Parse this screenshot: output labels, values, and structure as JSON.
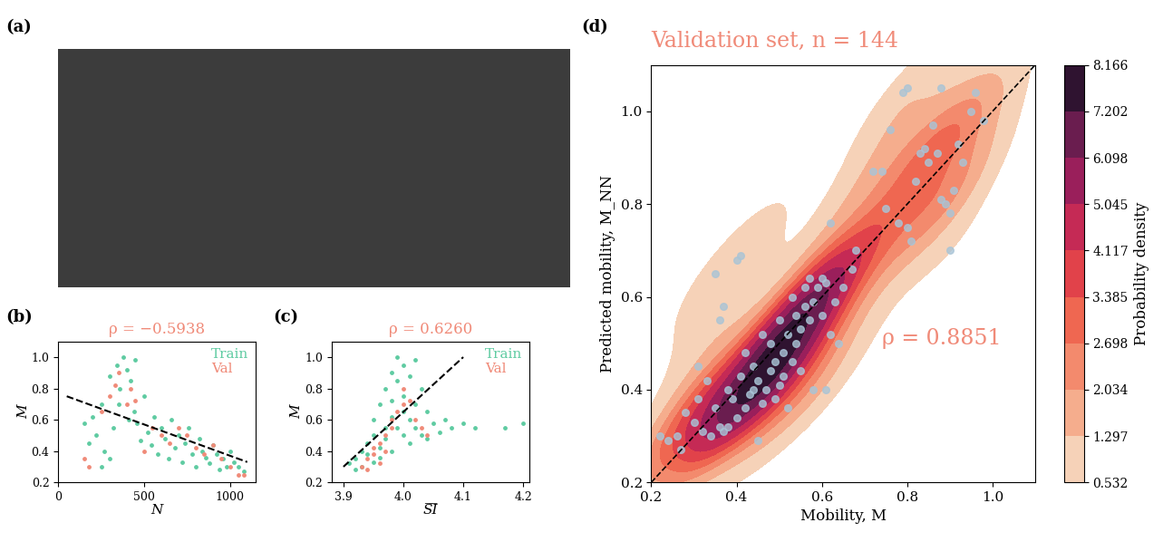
{
  "chart_data": [
    {
      "type": "image",
      "panel": "(a)"
    },
    {
      "type": "scatter",
      "panel": "(b)",
      "title": "ρ = −0.5938",
      "x_label": "N",
      "y_label": "M",
      "xlim": [
        0,
        1150
      ],
      "xticks": [
        0,
        500,
        1000
      ],
      "ylim": [
        0.2,
        1.1
      ],
      "yticks": [
        0.2,
        0.4,
        0.6,
        0.8,
        1.0
      ],
      "legend": "upper right",
      "series": [
        {
          "name": "Train",
          "color": "#5ecba1",
          "marker": "o",
          "x": [
            150,
            180,
            200,
            220,
            250,
            270,
            300,
            320,
            340,
            360,
            380,
            400,
            420,
            440,
            460,
            480,
            500,
            520,
            540,
            560,
            580,
            600,
            620,
            640,
            660,
            680,
            700,
            720,
            740,
            760,
            780,
            800,
            820,
            840,
            860,
            880,
            900,
            920,
            940,
            960,
            980,
            1000,
            1020,
            1050,
            1080,
            350,
            410,
            300,
            250,
            450
          ],
          "values": [
            0.58,
            0.45,
            0.62,
            0.5,
            0.7,
            0.4,
            0.88,
            0.55,
            0.95,
            0.8,
            1.0,
            0.92,
            0.85,
            0.65,
            0.58,
            0.47,
            0.75,
            0.52,
            0.44,
            0.62,
            0.38,
            0.55,
            0.48,
            0.35,
            0.6,
            0.42,
            0.5,
            0.33,
            0.45,
            0.55,
            0.38,
            0.3,
            0.48,
            0.4,
            0.36,
            0.32,
            0.44,
            0.38,
            0.28,
            0.35,
            0.3,
            0.4,
            0.33,
            0.3,
            0.27,
            0.7,
            0.6,
            0.35,
            0.3,
            0.98
          ]
        },
        {
          "name": "Val",
          "color": "#f08a78",
          "marker": "o",
          "x": [
            150,
            180,
            250,
            300,
            330,
            350,
            400,
            420,
            450,
            500,
            550,
            600,
            650,
            700,
            750,
            800,
            850,
            900,
            950,
            1000,
            1050,
            1080
          ],
          "values": [
            0.35,
            0.3,
            0.65,
            0.75,
            0.82,
            0.9,
            0.7,
            0.8,
            0.72,
            0.4,
            0.55,
            0.5,
            0.45,
            0.55,
            0.5,
            0.42,
            0.38,
            0.44,
            0.35,
            0.3,
            0.25,
            0.25
          ]
        },
        {
          "type": "line",
          "line_style": "dashed",
          "color": "#000000",
          "x": [
            50,
            1100
          ],
          "values": [
            0.75,
            0.33
          ]
        }
      ]
    },
    {
      "type": "scatter",
      "panel": "(c)",
      "title": "ρ = 0.6260",
      "x_label": "S̅I̅",
      "y_label": "M",
      "xlim": [
        3.88,
        4.21
      ],
      "xticks": [
        3.9,
        4.0,
        4.1,
        4.2
      ],
      "ylim": [
        0.2,
        1.1
      ],
      "yticks": [
        0.2,
        0.4,
        0.6,
        0.8,
        1.0
      ],
      "legend": "upper right",
      "series": [
        {
          "name": "Train",
          "color": "#5ecba1",
          "marker": "o",
          "x": [
            3.92,
            3.93,
            3.93,
            3.94,
            3.94,
            3.95,
            3.95,
            3.95,
            3.96,
            3.96,
            3.97,
            3.97,
            3.97,
            3.98,
            3.98,
            3.98,
            3.99,
            3.99,
            3.99,
            4.0,
            4.0,
            4.0,
            4.0,
            4.01,
            4.01,
            4.01,
            4.02,
            4.02,
            4.03,
            4.03,
            4.04,
            4.04,
            4.05,
            4.06,
            4.07,
            4.08,
            4.1,
            4.12,
            4.17,
            4.2,
            3.91,
            3.92,
            3.96,
            3.98,
            4.02
          ],
          "values": [
            0.35,
            0.4,
            0.3,
            0.45,
            0.38,
            0.5,
            0.33,
            0.6,
            0.42,
            0.7,
            0.55,
            0.8,
            0.48,
            0.9,
            0.62,
            0.4,
            1.0,
            0.85,
            0.55,
            0.95,
            0.75,
            0.5,
            0.65,
            0.88,
            0.6,
            0.45,
            0.7,
            0.55,
            0.8,
            0.5,
            0.65,
            0.48,
            0.58,
            0.52,
            0.6,
            0.55,
            0.58,
            0.55,
            0.55,
            0.58,
            0.32,
            0.28,
            0.36,
            0.72,
            0.98
          ]
        },
        {
          "name": "Val",
          "color": "#f08a78",
          "marker": "o",
          "x": [
            3.93,
            3.94,
            3.94,
            3.95,
            3.95,
            3.96,
            3.96,
            3.97,
            3.97,
            3.98,
            3.98,
            3.99,
            4.0,
            4.0,
            4.01,
            4.02,
            4.03,
            4.04
          ],
          "values": [
            0.3,
            0.35,
            0.28,
            0.38,
            0.42,
            0.45,
            0.32,
            0.5,
            0.4,
            0.55,
            0.6,
            0.65,
            0.7,
            0.8,
            0.72,
            0.6,
            0.55,
            0.5
          ]
        },
        {
          "type": "line",
          "line_style": "dashed",
          "color": "#000000",
          "x": [
            3.9,
            4.1
          ],
          "values": [
            0.3,
            1.0
          ]
        }
      ]
    },
    {
      "type": "scatter_kde",
      "panel": "(d)",
      "title": "Validation set, n = 144",
      "annotation": "ρ = 0.8851",
      "x_label": "Mobility, M",
      "y_label": "Predicted mobility, M_NN",
      "xlim": [
        0.2,
        1.1
      ],
      "xticks": [
        0.2,
        0.4,
        0.6,
        0.8,
        1.0
      ],
      "ylim": [
        0.2,
        1.1
      ],
      "yticks": [
        0.2,
        0.4,
        0.6,
        0.8,
        1.0
      ],
      "color": "#a9c4d6",
      "colorbar_label": "Probability density",
      "colorbar_ticks": [
        0.532,
        1.297,
        2.034,
        2.698,
        3.385,
        4.117,
        5.045,
        6.098,
        7.202,
        8.166
      ],
      "colors": [
        "#f6d2b8",
        "#f5ad8d",
        "#f38a6d",
        "#ef6751",
        "#e1424a",
        "#c52a55",
        "#9a1f5b",
        "#6a1d4f",
        "#2f1330"
      ],
      "reference_line": {
        "x": [
          0.2,
          1.1
        ],
        "values": [
          0.2,
          1.1
        ],
        "line_style": "dashed",
        "color": "#000000"
      },
      "x": [
        0.22,
        0.24,
        0.26,
        0.27,
        0.28,
        0.3,
        0.31,
        0.31,
        0.32,
        0.33,
        0.34,
        0.35,
        0.35,
        0.36,
        0.36,
        0.37,
        0.37,
        0.38,
        0.38,
        0.39,
        0.4,
        0.4,
        0.41,
        0.41,
        0.42,
        0.42,
        0.43,
        0.44,
        0.44,
        0.45,
        0.45,
        0.46,
        0.46,
        0.47,
        0.48,
        0.48,
        0.49,
        0.49,
        0.5,
        0.5,
        0.51,
        0.51,
        0.52,
        0.52,
        0.53,
        0.53,
        0.54,
        0.54,
        0.55,
        0.55,
        0.56,
        0.56,
        0.57,
        0.57,
        0.58,
        0.58,
        0.59,
        0.6,
        0.6,
        0.61,
        0.61,
        0.62,
        0.62,
        0.63,
        0.64,
        0.65,
        0.67,
        0.68,
        0.72,
        0.74,
        0.75,
        0.76,
        0.78,
        0.79,
        0.8,
        0.8,
        0.81,
        0.82,
        0.83,
        0.84,
        0.85,
        0.86,
        0.87,
        0.88,
        0.88,
        0.89,
        0.9,
        0.9,
        0.91,
        0.92,
        0.93,
        0.95,
        0.96,
        0.98
      ],
      "values": [
        0.3,
        0.29,
        0.3,
        0.27,
        0.35,
        0.33,
        0.38,
        0.45,
        0.31,
        0.42,
        0.3,
        0.65,
        0.36,
        0.55,
        0.32,
        0.58,
        0.31,
        0.32,
        0.4,
        0.38,
        0.68,
        0.34,
        0.69,
        0.43,
        0.36,
        0.48,
        0.39,
        0.45,
        0.4,
        0.29,
        0.42,
        0.37,
        0.52,
        0.4,
        0.44,
        0.5,
        0.38,
        0.46,
        0.41,
        0.55,
        0.48,
        0.43,
        0.52,
        0.36,
        0.46,
        0.6,
        0.5,
        0.56,
        0.53,
        0.44,
        0.58,
        0.62,
        0.55,
        0.64,
        0.59,
        0.4,
        0.62,
        0.56,
        0.64,
        0.63,
        0.4,
        0.76,
        0.52,
        0.59,
        0.5,
        0.62,
        0.66,
        0.7,
        0.87,
        0.87,
        0.79,
        0.96,
        0.76,
        1.04,
        1.05,
        0.75,
        0.72,
        0.85,
        0.91,
        0.92,
        0.89,
        0.97,
        0.91,
        0.81,
        1.05,
        0.8,
        0.7,
        0.78,
        0.83,
        0.93,
        0.89,
        1.0,
        1.04,
        0.98
      ]
    }
  ]
}
